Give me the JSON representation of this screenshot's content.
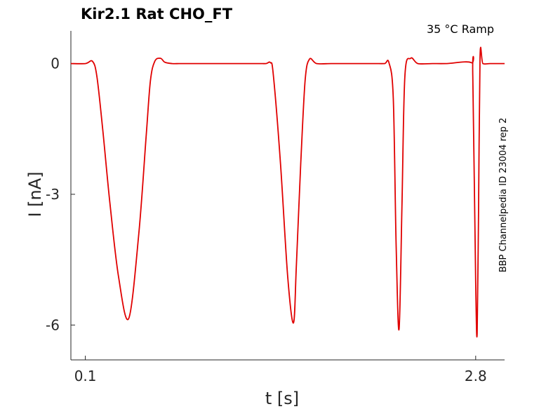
{
  "chart_data": {
    "type": "line",
    "title": "Kir2.1  Rat  CHO_FT",
    "subtitle": "35 °C  Ramp",
    "xlabel": "t [s]",
    "ylabel": "I [nA]",
    "side_label": "BBP Channelpedia ID 23004 rep 2",
    "xlim": [
      0.0,
      3.0
    ],
    "ylim": [
      -6.8,
      0.75
    ],
    "xticks": [
      0.1,
      2.8
    ],
    "xtick_labels": [
      "0.1",
      "2.8"
    ],
    "yticks": [
      0,
      -3,
      -6
    ],
    "ytick_labels": [
      "0",
      "-3",
      "-6"
    ],
    "grid": false,
    "color": "#e00000",
    "series": [
      {
        "x": [
          0.0,
          0.1,
          0.15,
          0.18,
          0.22,
          0.27,
          0.33,
          0.4,
          0.47,
          0.52,
          0.55,
          0.58,
          0.62,
          0.65,
          0.7,
          0.75,
          0.8,
          0.9,
          1.0,
          1.1,
          1.2,
          1.3,
          1.35,
          1.38,
          1.4,
          1.45,
          1.5,
          1.54,
          1.56,
          1.59,
          1.62,
          1.65,
          1.7,
          1.8,
          1.9,
          2.0,
          2.1,
          2.17,
          2.2,
          2.23,
          2.25,
          2.27,
          2.29,
          2.31,
          2.35,
          2.4,
          2.5,
          2.6,
          2.77,
          2.78,
          2.8,
          2.81,
          2.82,
          2.83,
          2.85,
          2.9,
          3.0
        ],
        "y": [
          0.0,
          0.0,
          0.05,
          -0.3,
          -1.5,
          -3.2,
          -4.9,
          -5.85,
          -3.9,
          -1.7,
          -0.4,
          0.05,
          0.12,
          0.03,
          0.0,
          0.0,
          0.0,
          0.0,
          0.0,
          0.0,
          0.0,
          0.0,
          0.0,
          0.02,
          -0.25,
          -2.3,
          -4.9,
          -5.95,
          -4.6,
          -2.3,
          -0.4,
          0.1,
          0.0,
          0.0,
          0.0,
          0.0,
          0.0,
          0.0,
          0.02,
          -0.8,
          -4.2,
          -6.1,
          -3.3,
          -0.3,
          0.12,
          0.0,
          0.0,
          0.0,
          0.02,
          -0.3,
          -5.0,
          -6.2,
          -3.4,
          0.15,
          0.0,
          0.0,
          0.0
        ]
      }
    ]
  }
}
